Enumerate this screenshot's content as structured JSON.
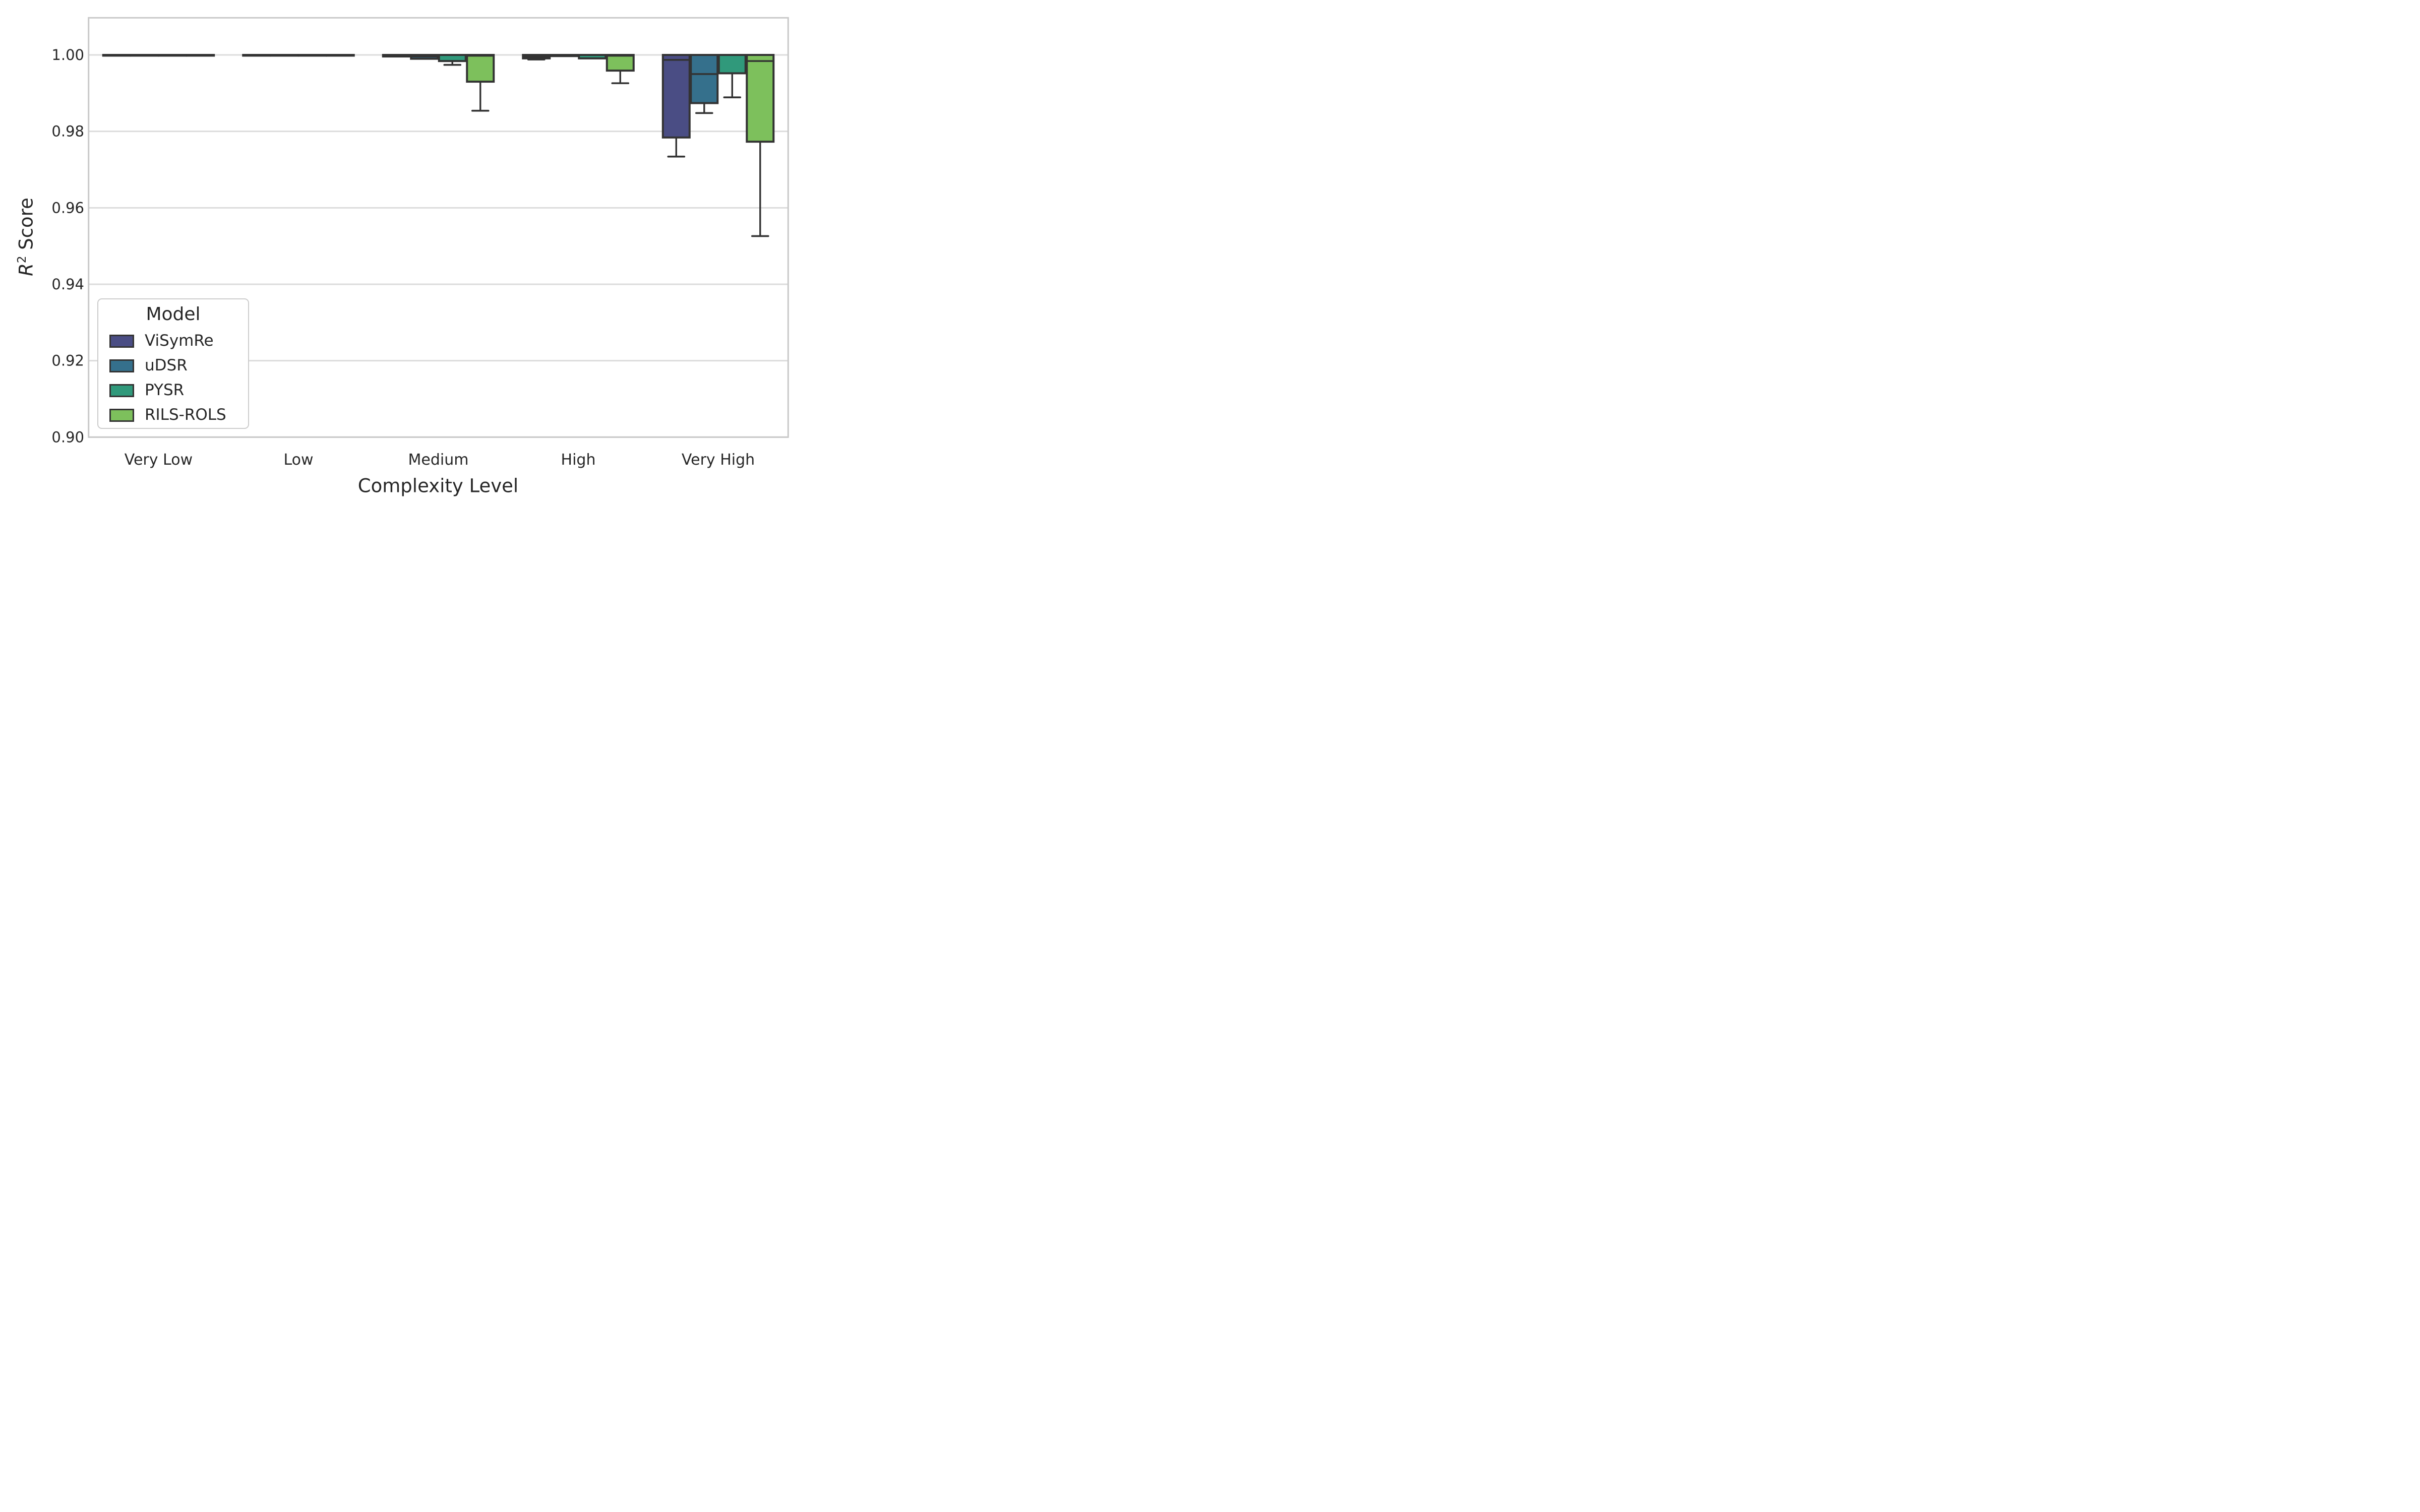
{
  "figure": {
    "xlabel": "Complexity Level",
    "ylabel_r": "R",
    "ylabel_sup": "2",
    "ylabel_rest": " Score"
  },
  "legend": {
    "title": "Model",
    "entries": [
      {
        "label": "ViSymRe",
        "color": "#4a4d84"
      },
      {
        "label": "uDSR",
        "color": "#35708c"
      },
      {
        "label": "PYSR",
        "color": "#30997b"
      },
      {
        "label": "RILS-ROLS",
        "color": "#7dc05c"
      }
    ]
  },
  "colors": {
    "box_edge": "#333333",
    "gridline": "#dcdcdc",
    "spine": "#c9c9c9",
    "text": "#262626",
    "background": "#ffffff"
  },
  "chart_data": {
    "type": "boxplot",
    "title": "",
    "xlabel": "Complexity Level",
    "ylabel": "R^2 Score",
    "categories": [
      "Very Low",
      "Low",
      "Medium",
      "High",
      "Very High"
    ],
    "y_ticks": [
      {
        "label": "1.00",
        "value": 1.0
      },
      {
        "label": "0.98",
        "value": 0.98
      },
      {
        "label": "0.96",
        "value": 0.96
      },
      {
        "label": "0.94",
        "value": 0.94
      },
      {
        "label": "0.92",
        "value": 0.92
      },
      {
        "label": "0.90",
        "value": 0.9
      }
    ],
    "ylim": [
      0.9,
      1.0095
    ],
    "grid": "horizontal",
    "legend_position": "lower left",
    "series": [
      {
        "name": "ViSymRe",
        "color": "#4a4d84",
        "boxes": [
          {
            "q1": 1.0,
            "median": 1.0,
            "q3": 1.0,
            "whislo": 1.0,
            "whishi": 1.0
          },
          {
            "q1": 1.0,
            "median": 1.0,
            "q3": 1.0,
            "whislo": 1.0,
            "whishi": 1.0
          },
          {
            "q1": 0.9996,
            "median": 1.0,
            "q3": 1.0,
            "whislo": 0.9996,
            "whishi": 1.0
          },
          {
            "q1": 0.9991,
            "median": 0.9995,
            "q3": 1.0,
            "whislo": 0.9988,
            "whishi": 1.0
          },
          {
            "q1": 0.9784,
            "median": 0.9987,
            "q3": 1.0,
            "whislo": 0.9734,
            "whishi": 1.0
          }
        ]
      },
      {
        "name": "uDSR",
        "color": "#35708c",
        "boxes": [
          {
            "q1": 1.0,
            "median": 1.0,
            "q3": 1.0,
            "whislo": 1.0,
            "whishi": 1.0
          },
          {
            "q1": 1.0,
            "median": 1.0,
            "q3": 1.0,
            "whislo": 1.0,
            "whishi": 1.0
          },
          {
            "q1": 0.999,
            "median": 0.9996,
            "q3": 1.0,
            "whislo": 0.999,
            "whishi": 1.0
          },
          {
            "q1": 0.9997,
            "median": 1.0,
            "q3": 1.0,
            "whislo": 0.9997,
            "whishi": 1.0
          },
          {
            "q1": 0.9874,
            "median": 0.995,
            "q3": 1.0,
            "whislo": 0.9848,
            "whishi": 1.0
          }
        ]
      },
      {
        "name": "PYSR",
        "color": "#30997b",
        "boxes": [
          {
            "q1": 1.0,
            "median": 1.0,
            "q3": 1.0,
            "whislo": 1.0,
            "whishi": 1.0
          },
          {
            "q1": 1.0,
            "median": 1.0,
            "q3": 1.0,
            "whislo": 1.0,
            "whishi": 1.0
          },
          {
            "q1": 0.9984,
            "median": 1.0,
            "q3": 1.0,
            "whislo": 0.9974,
            "whishi": 1.0
          },
          {
            "q1": 0.9991,
            "median": 1.0,
            "q3": 1.0,
            "whislo": 0.9991,
            "whishi": 1.0
          },
          {
            "q1": 0.9952,
            "median": 1.0,
            "q3": 1.0,
            "whislo": 0.9889,
            "whishi": 1.0
          }
        ]
      },
      {
        "name": "RILS-ROLS",
        "color": "#7dc05c",
        "boxes": [
          {
            "q1": 1.0,
            "median": 1.0,
            "q3": 1.0,
            "whislo": 1.0,
            "whishi": 1.0
          },
          {
            "q1": 1.0,
            "median": 1.0,
            "q3": 1.0,
            "whislo": 1.0,
            "whishi": 1.0
          },
          {
            "q1": 0.993,
            "median": 0.9998,
            "q3": 1.0,
            "whislo": 0.9854,
            "whishi": 1.0
          },
          {
            "q1": 0.9959,
            "median": 0.9998,
            "q3": 1.0,
            "whislo": 0.9926,
            "whishi": 1.0
          },
          {
            "q1": 0.9773,
            "median": 0.9984,
            "q3": 1.0,
            "whislo": 0.9526,
            "whishi": 1.0
          }
        ]
      }
    ]
  }
}
